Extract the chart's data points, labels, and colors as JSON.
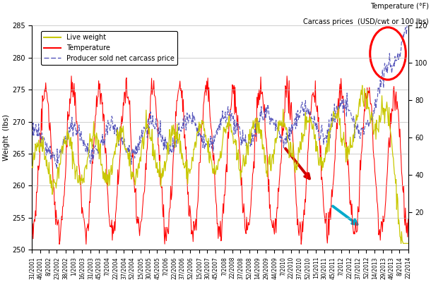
{
  "title_left": "Weight  (lbs)",
  "title_right_top": "Temperature (°F)",
  "title_right_bottom": "Carcass prices  (USD/cwt or 100 lbs)",
  "ylim_left": [
    250,
    285
  ],
  "ylim_right": [
    0,
    120
  ],
  "yticks_left": [
    250,
    255,
    260,
    265,
    270,
    275,
    280,
    285
  ],
  "yticks_right": [
    20,
    40,
    60,
    80,
    100,
    120
  ],
  "live_weight_color": "#c8c800",
  "temperature_color": "#ff0000",
  "price_color": "#5555bb",
  "arrow_red_color": "#cc0000",
  "arrow_blue_color": "#00aacc",
  "circle_color": "#ff0000",
  "background_color": "#ffffff",
  "grid_color": "#bbbbbb",
  "legend_entries": [
    "Live weight",
    "Temperature",
    "Producer sold net carcass price"
  ],
  "n_points": 690,
  "seed": 42
}
